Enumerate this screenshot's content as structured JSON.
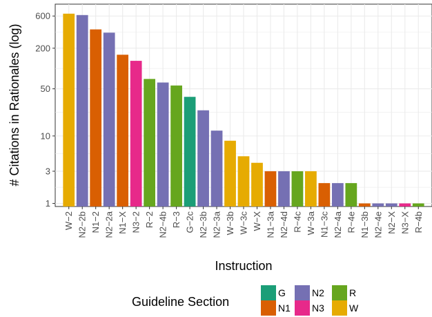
{
  "chart_data": {
    "type": "bar",
    "xlabel": "Instruction",
    "ylabel": "# Citations in Rationales (log)",
    "yscale": "log",
    "ylim": [
      0.9,
      900
    ],
    "yticks": [
      1,
      3,
      10,
      50,
      200,
      600
    ],
    "grid": true,
    "categories": [
      "W−2",
      "N2−2b",
      "N1−2",
      "N2−2a",
      "N1−X",
      "N3−2",
      "R−2",
      "N2−4b",
      "R−3",
      "G−2c",
      "N2−3b",
      "N2−3a",
      "W−3b",
      "W−3c",
      "W−X",
      "N1−3a",
      "N2−4d",
      "R−4c",
      "W−3a",
      "N1−3c",
      "N2−4a",
      "R−4e",
      "N1−3b",
      "N2−4e",
      "N2−X",
      "N3−X",
      "R−4b"
    ],
    "values": [
      650,
      620,
      380,
      340,
      160,
      130,
      70,
      62,
      56,
      38,
      24,
      12,
      8.5,
      5,
      4,
      3,
      3,
      3,
      3,
      2,
      2,
      2,
      1,
      1,
      1,
      1,
      1
    ],
    "groups": [
      "W",
      "N2",
      "N1",
      "N2",
      "N1",
      "N3",
      "R",
      "N2",
      "R",
      "G",
      "N2",
      "N2",
      "W",
      "W",
      "W",
      "N1",
      "N2",
      "R",
      "W",
      "N1",
      "N2",
      "R",
      "N1",
      "N2",
      "N2",
      "N3",
      "R"
    ],
    "legend": {
      "title": "Guideline Section",
      "position": "bottom",
      "entries": [
        {
          "key": "G",
          "label": "G",
          "color": "#1b9e77"
        },
        {
          "key": "N1",
          "label": "N1",
          "color": "#d95f02"
        },
        {
          "key": "N2",
          "label": "N2",
          "color": "#7570b3"
        },
        {
          "key": "N3",
          "label": "N3",
          "color": "#e7298a"
        },
        {
          "key": "R",
          "label": "R",
          "color": "#66a61e"
        },
        {
          "key": "W",
          "label": "W",
          "color": "#e6ab02"
        }
      ]
    }
  }
}
